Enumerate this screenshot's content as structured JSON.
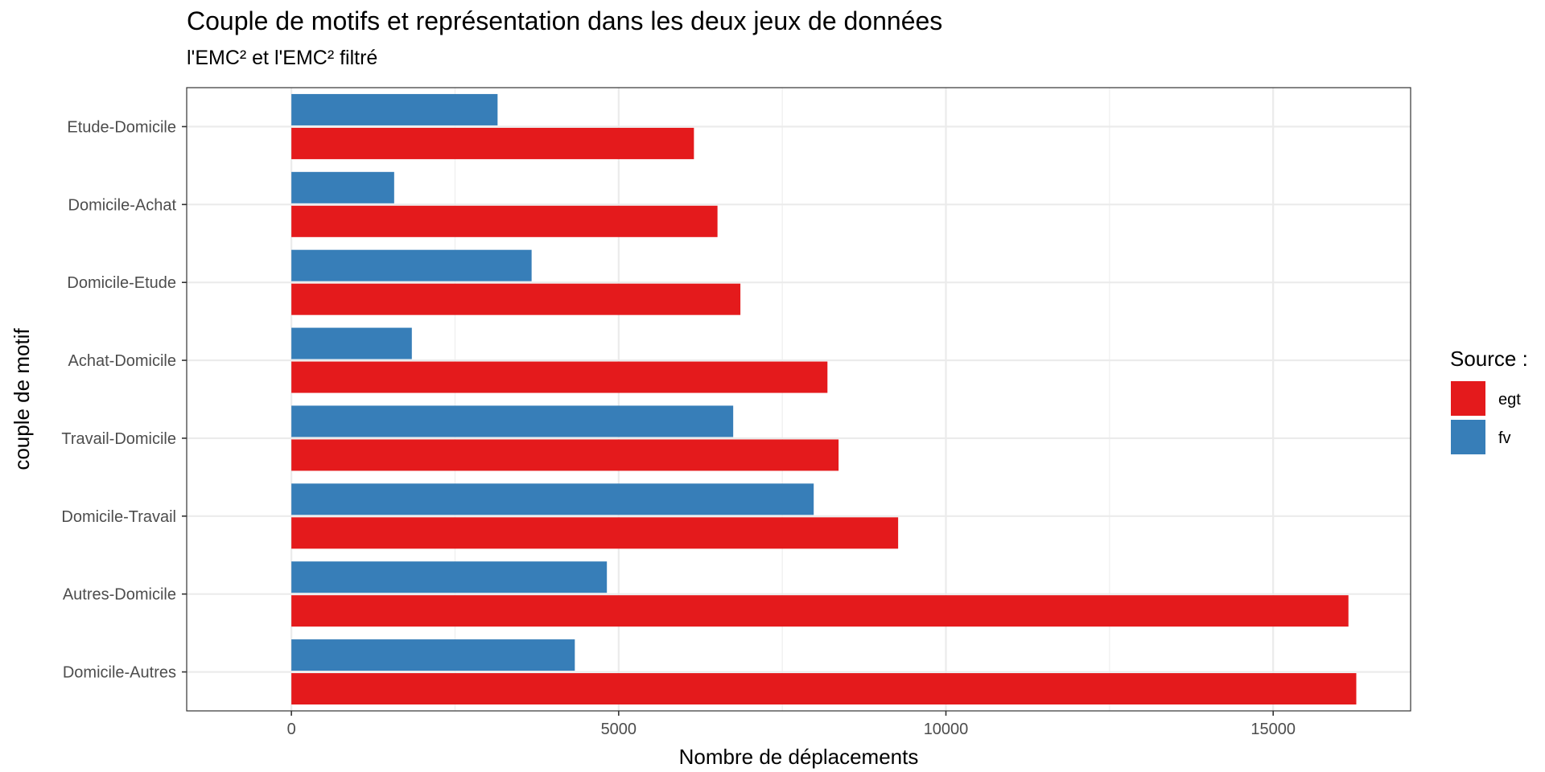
{
  "chart_data": {
    "type": "bar",
    "orientation": "horizontal",
    "title": "Couple de motifs et représentation dans les deux jeux de données",
    "subtitle": "l'EMC² et l'EMC² filtré",
    "xlabel": "Nombre de déplacements",
    "ylabel": "couple de motif",
    "xlim": [
      -1600,
      17100
    ],
    "xticks": [
      0,
      5000,
      10000,
      15000
    ],
    "xtick_labels": [
      "0",
      "5000",
      "10000",
      "15000"
    ],
    "grid": true,
    "categories": [
      "Etude-Domicile",
      "Domicile-Achat",
      "Domicile-Etude",
      "Achat-Domicile",
      "Travail-Domicile",
      "Domicile-Travail",
      "Autres-Domicile",
      "Domicile-Autres"
    ],
    "legend": {
      "title": "Source :",
      "position": "right"
    },
    "series": [
      {
        "name": "egt",
        "color": "#e41a1c",
        "values": [
          6150,
          6510,
          6860,
          8190,
          8360,
          9270,
          16150,
          16270
        ]
      },
      {
        "name": "fv",
        "color": "#377eb8",
        "values": [
          3150,
          1570,
          3670,
          1840,
          6750,
          7980,
          4820,
          4330
        ]
      }
    ]
  }
}
